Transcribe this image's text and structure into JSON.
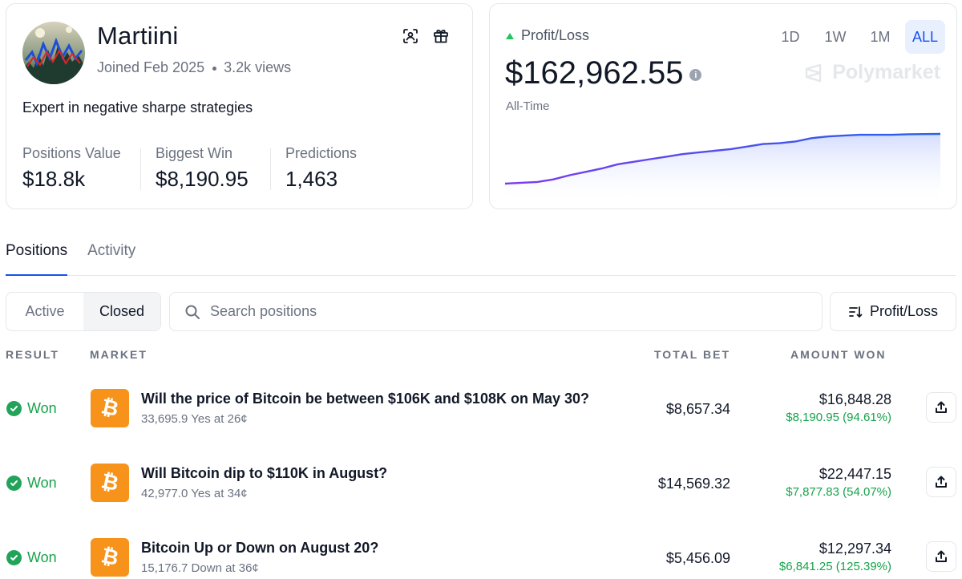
{
  "profile": {
    "username": "Martiini",
    "joined": "Joined Feb 2025",
    "views": "3.2k views",
    "bio": "Expert in negative sharpe strategies",
    "stats": [
      {
        "label": "Positions Value",
        "value": "$18.8k"
      },
      {
        "label": "Biggest Win",
        "value": "$8,190.95"
      },
      {
        "label": "Predictions",
        "value": "1,463"
      }
    ]
  },
  "pnl": {
    "label": "Profit/Loss",
    "value": "$162,962.55",
    "info_icon": "i",
    "period": "All-Time",
    "ranges": [
      "1D",
      "1W",
      "1M",
      "ALL"
    ],
    "active_range": "ALL",
    "watermark": "Polymarket",
    "colors": {
      "up": "#22c55e",
      "line_start": "#7c3aed",
      "line_end": "#2563eb"
    }
  },
  "chart_data": {
    "type": "line",
    "series": [
      {
        "values": [
          3,
          3.5,
          4,
          5.5,
          8,
          10,
          12,
          14.5,
          16,
          17.5,
          19,
          20.5,
          21.5,
          22.5,
          23.5,
          25,
          26.5,
          27,
          28,
          30,
          31,
          31.5,
          32,
          32,
          32,
          32.3,
          32.4,
          32.5
        ]
      }
    ]
  },
  "tabs": [
    "Positions",
    "Activity"
  ],
  "filters": {
    "segments": [
      "Active",
      "Closed"
    ],
    "active_segment": "Closed"
  },
  "search": {
    "placeholder": "Search positions"
  },
  "sort": {
    "label": "Profit/Loss"
  },
  "table": {
    "headers": {
      "result": "RESULT",
      "market": "MARKET",
      "total_bet": "TOTAL BET",
      "amount_won": "AMOUNT WON"
    },
    "rows": [
      {
        "result": "Won",
        "icon": "bitcoin-icon",
        "title": "Will the price of Bitcoin be between $106K and $108K on May 30?",
        "sub": "33,695.9 Yes at 26¢",
        "total_bet": "$8,657.34",
        "amount_won": "$16,848.28",
        "profit": "$8,190.95 (94.61%)"
      },
      {
        "result": "Won",
        "icon": "bitcoin-icon",
        "title": "Will Bitcoin dip to $110K in August?",
        "sub": "42,977.0 Yes at 34¢",
        "total_bet": "$14,569.32",
        "amount_won": "$22,447.15",
        "profit": "$7,877.83 (54.07%)"
      },
      {
        "result": "Won",
        "icon": "bitcoin-icon",
        "title": "Bitcoin Up or Down on August 20?",
        "sub": "15,176.7 Down at 36¢",
        "total_bet": "$5,456.09",
        "amount_won": "$12,297.34",
        "profit": "$6,841.25 (125.39%)"
      }
    ]
  }
}
